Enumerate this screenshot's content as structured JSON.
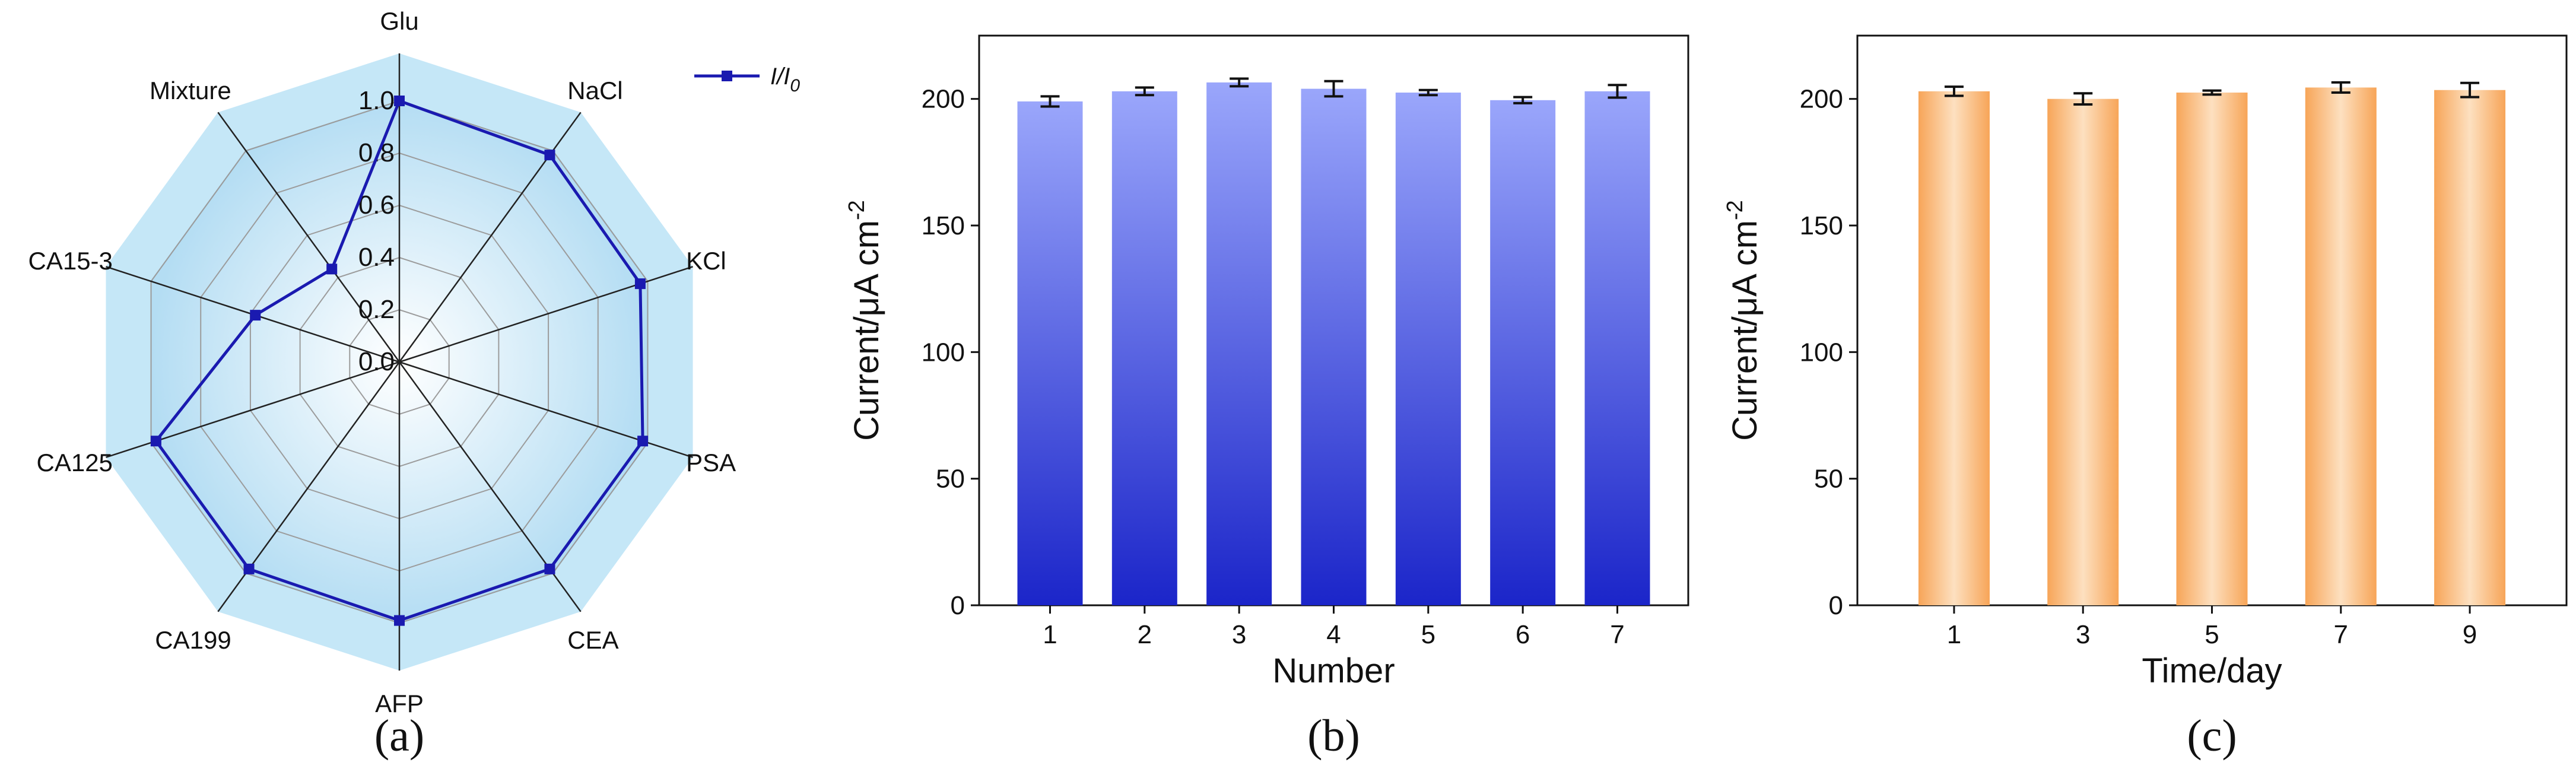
{
  "chart_data": [
    {
      "type": "radar",
      "panel_label": "(a)",
      "categories": [
        "Glu",
        "NaCl",
        "KCl",
        "PSA",
        "CEA",
        "AFP",
        "CA199",
        "CA125",
        "CA15-3",
        "Mixture"
      ],
      "series": [
        {
          "name": "I/I0",
          "name_main": "I/I",
          "name_sub": "0",
          "values": [
            1.0,
            0.98,
            0.97,
            0.98,
            0.98,
            0.99,
            0.98,
            0.98,
            0.58,
            0.44
          ]
        }
      ],
      "rlim": [
        0,
        1
      ],
      "radial_ticks": [
        "0.0",
        "0.2",
        "0.4",
        "0.6",
        "0.8",
        "1.0"
      ],
      "radial_tick_values": [
        0,
        0.2,
        0.4,
        0.6,
        0.8,
        1.0
      ],
      "legend_position": "top-right",
      "colors": {
        "line": "#1a1ab0",
        "fill_outer": "#c5e7f7",
        "fill_inner": "#ffffff",
        "grid": "#999999"
      }
    },
    {
      "type": "bar",
      "panel_label": "(b)",
      "categories": [
        "1",
        "2",
        "3",
        "4",
        "5",
        "6",
        "7"
      ],
      "values": [
        199,
        203,
        206.5,
        204,
        202.5,
        199.5,
        203
      ],
      "errors": [
        2,
        1.5,
        1.5,
        3,
        1,
        1.2,
        2.5
      ],
      "xlabel": "Number",
      "ylabel_main": "Current/μA cm",
      "ylabel_sup": "-2",
      "ylim": [
        0,
        225
      ],
      "yticks": [
        "0",
        "50",
        "100",
        "150",
        "200"
      ],
      "ytick_values": [
        0,
        50,
        100,
        150,
        200
      ],
      "grid": false,
      "colors": {
        "top": "#9aa6fb",
        "bottom": "#1b25c9"
      }
    },
    {
      "type": "bar",
      "panel_label": "(c)",
      "categories": [
        "1",
        "3",
        "5",
        "7",
        "9"
      ],
      "values": [
        203,
        200,
        202.5,
        204.5,
        203.5
      ],
      "errors": [
        1.8,
        2.2,
        0.8,
        2,
        2.8
      ],
      "xlabel": "Time/day",
      "ylabel_main": "Current/μA cm",
      "ylabel_sup": "-2",
      "ylim": [
        0,
        225
      ],
      "yticks": [
        "0",
        "50",
        "100",
        "150",
        "200"
      ],
      "ytick_values": [
        0,
        50,
        100,
        150,
        200
      ],
      "grid": false,
      "colors": {
        "edge": "#f7a558",
        "center": "#fde0c0"
      }
    }
  ]
}
